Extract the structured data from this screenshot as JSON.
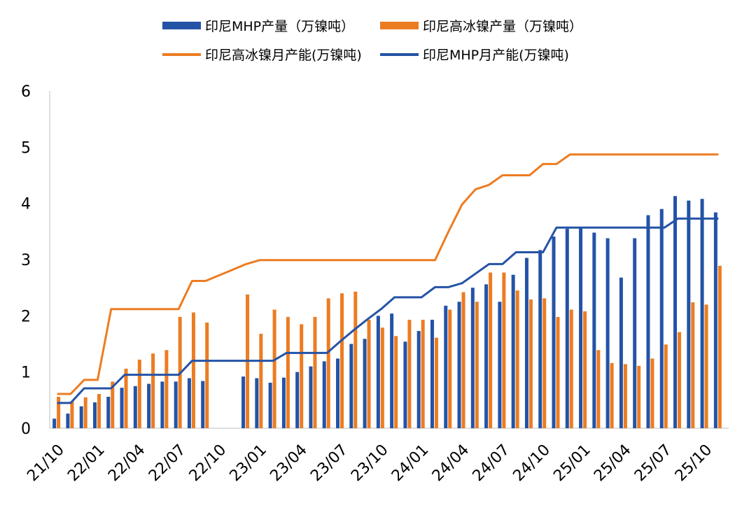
{
  "legend": {
    "mhp_output": "印尼MHP产量（万镍吨）",
    "hpni_output": "印尼高冰镍产量（万镍吨）",
    "hpni_capacity": "印尼高冰镍月产能(万镍吨)",
    "mhp_capacity": "印尼MHP月产能(万镍吨)"
  },
  "colors": {
    "blue": "#2453a6",
    "orange": "#ec7c22",
    "axis": "#bfbfbf"
  },
  "chart_data": {
    "type": "bar+line",
    "x": [
      "21/10",
      "21/11",
      "21/12",
      "22/01",
      "22/02",
      "22/03",
      "22/04",
      "22/05",
      "22/06",
      "22/07",
      "22/08",
      "22/09",
      "22/10",
      "22/11",
      "22/12",
      "23/01",
      "23/02",
      "23/03",
      "23/04",
      "23/05",
      "23/06",
      "23/07",
      "23/08",
      "23/09",
      "23/10",
      "23/11",
      "23/12",
      "24/01",
      "24/02",
      "24/03",
      "24/04",
      "24/05",
      "24/06",
      "24/07",
      "24/08",
      "24/09",
      "24/10",
      "24/11",
      "24/12",
      "25/01",
      "25/02",
      "25/03",
      "25/04",
      "25/05",
      "25/06",
      "25/07",
      "25/08",
      "25/09",
      "25/10",
      "25/11"
    ],
    "tick_labels": [
      "21/10",
      "22/01",
      "22/04",
      "22/07",
      "22/10",
      "23/01",
      "23/04",
      "23/07",
      "23/10",
      "24/01",
      "24/04",
      "24/07",
      "24/10",
      "25/01",
      "25/04",
      "25/07",
      "25/10"
    ],
    "ylim": [
      0,
      6
    ],
    "yticks": [
      0,
      1,
      2,
      3,
      4,
      5,
      6
    ],
    "series": [
      {
        "name": "印尼MHP产量（万镍吨）",
        "kind": "bar",
        "values": [
          0.17,
          0.26,
          0.39,
          0.46,
          0.56,
          0.72,
          0.75,
          0.79,
          0.83,
          0.83,
          0.89,
          0.84,
          null,
          null,
          0.92,
          0.89,
          0.81,
          0.9,
          1.0,
          1.1,
          1.19,
          1.24,
          1.5,
          1.59,
          2.0,
          2.04,
          1.54,
          1.73,
          1.93,
          2.18,
          2.25,
          2.5,
          2.56,
          2.25,
          2.73,
          3.03,
          3.17,
          3.41,
          3.55,
          3.57,
          3.48,
          3.38,
          2.68,
          3.38,
          3.79,
          3.9,
          4.13,
          4.05,
          4.08,
          3.84
        ]
      },
      {
        "name": "印尼高冰镍产量（万镍吨）",
        "kind": "bar",
        "values": [
          0.56,
          0.48,
          0.55,
          0.61,
          0.83,
          1.06,
          1.22,
          1.33,
          1.39,
          1.98,
          2.06,
          1.88,
          null,
          null,
          2.38,
          1.68,
          2.11,
          1.98,
          1.85,
          1.98,
          2.31,
          2.4,
          2.43,
          1.93,
          1.79,
          1.64,
          1.93,
          1.93,
          1.61,
          2.11,
          2.42,
          2.25,
          2.77,
          2.77,
          2.45,
          2.29,
          2.31,
          1.98,
          2.11,
          2.08,
          1.39,
          1.16,
          1.14,
          1.11,
          1.24,
          1.49,
          1.71,
          2.24,
          2.2,
          2.89
        ]
      },
      {
        "name": "印尼高冰镍月产能(万镍吨)",
        "kind": "line",
        "values": [
          0.61,
          0.61,
          0.86,
          0.86,
          2.12,
          2.12,
          2.12,
          2.12,
          2.12,
          2.12,
          2.62,
          2.62,
          2.72,
          2.82,
          2.92,
          2.99,
          2.99,
          2.99,
          2.99,
          2.99,
          2.99,
          2.99,
          2.99,
          2.99,
          2.99,
          2.99,
          2.99,
          2.99,
          2.99,
          3.5,
          3.98,
          4.25,
          4.33,
          4.5,
          4.5,
          4.5,
          4.7,
          4.7,
          4.87,
          4.87,
          4.87,
          4.87,
          4.87,
          4.87,
          4.87,
          4.87,
          4.87,
          4.87,
          4.87,
          4.87
        ]
      },
      {
        "name": "印尼MHP月产能(万镍吨)",
        "kind": "line",
        "values": [
          0.45,
          0.45,
          0.71,
          0.71,
          0.71,
          0.95,
          0.95,
          0.95,
          0.95,
          0.95,
          1.2,
          1.2,
          1.2,
          1.2,
          1.2,
          1.2,
          1.2,
          1.34,
          1.34,
          1.34,
          1.34,
          1.55,
          1.75,
          1.94,
          2.12,
          2.33,
          2.33,
          2.33,
          2.51,
          2.51,
          2.58,
          2.75,
          2.92,
          2.92,
          3.13,
          3.13,
          3.13,
          3.57,
          3.57,
          3.57,
          3.57,
          3.57,
          3.57,
          3.57,
          3.57,
          3.57,
          3.73,
          3.73,
          3.73,
          3.73
        ]
      }
    ]
  }
}
